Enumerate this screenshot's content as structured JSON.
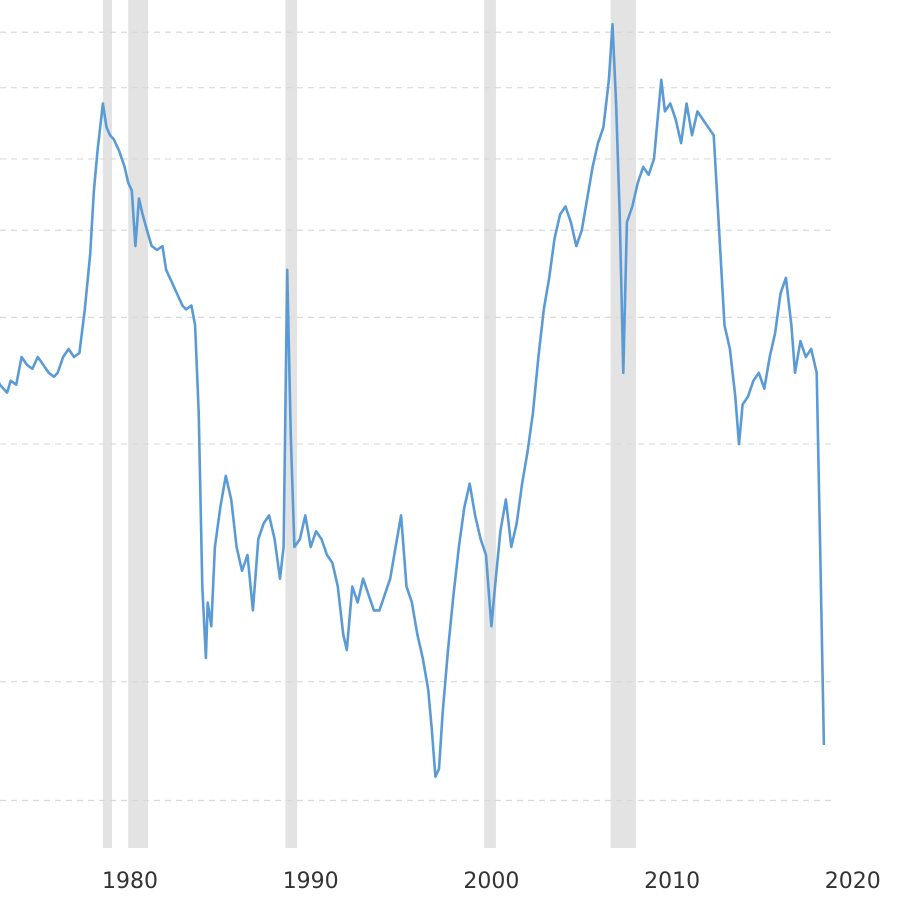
{
  "chart_data": {
    "type": "line",
    "title": "",
    "xlabel": "",
    "ylabel": "",
    "xlim": [
      1972.5,
      2021.0
    ],
    "ylim": [
      0,
      100
    ],
    "x_ticks": [
      1980,
      1990,
      2000,
      2010,
      2020
    ],
    "x_tick_labels": [
      "1980",
      "1990",
      "2000",
      "2010",
      "2020"
    ],
    "y_gridlines": [
      6.0,
      21.0,
      51.0,
      67.0,
      78.0,
      87.0,
      96.0,
      103.0,
      109.0
    ],
    "grid": "horizontal dashed",
    "legend": "none",
    "colors": {
      "line": "#5b9bd5",
      "recession_band": "#e3e3e3",
      "grid": "#d9d9d9",
      "tick_label": "#333333"
    },
    "recession_bands": [
      [
        1978.5,
        1979.0
      ],
      [
        1979.9,
        1981.0
      ],
      [
        1988.6,
        1989.25
      ],
      [
        1999.6,
        2000.25
      ],
      [
        2006.6,
        2008.0
      ]
    ],
    "series": [
      {
        "values": [
          [
            1972.5,
            60.0
          ],
          [
            1972.8,
            58.5
          ],
          [
            1973.2,
            57.5
          ],
          [
            1973.4,
            59.0
          ],
          [
            1973.7,
            58.5
          ],
          [
            1974.0,
            62.0
          ],
          [
            1974.3,
            61.0
          ],
          [
            1974.6,
            60.5
          ],
          [
            1974.9,
            62.0
          ],
          [
            1975.2,
            61.0
          ],
          [
            1975.5,
            60.0
          ],
          [
            1975.8,
            59.5
          ],
          [
            1976.0,
            60.0
          ],
          [
            1976.3,
            62.0
          ],
          [
            1976.6,
            63.0
          ],
          [
            1976.9,
            62.0
          ],
          [
            1977.2,
            62.5
          ],
          [
            1977.5,
            68.0
          ],
          [
            1977.8,
            75.0
          ],
          [
            1978.0,
            83.0
          ],
          [
            1978.2,
            88.0
          ],
          [
            1978.5,
            94.0
          ],
          [
            1978.7,
            91.0
          ],
          [
            1978.9,
            90.0
          ],
          [
            1979.1,
            89.5
          ],
          [
            1979.4,
            88.0
          ],
          [
            1979.7,
            86.0
          ],
          [
            1979.9,
            84.0
          ],
          [
            1980.1,
            83.0
          ],
          [
            1980.3,
            76.0
          ],
          [
            1980.5,
            82.0
          ],
          [
            1980.7,
            80.0
          ],
          [
            1981.0,
            77.5
          ],
          [
            1981.2,
            76.0
          ],
          [
            1981.5,
            75.5
          ],
          [
            1981.8,
            76.0
          ],
          [
            1982.0,
            73.0
          ],
          [
            1982.3,
            71.5
          ],
          [
            1982.6,
            70.0
          ],
          [
            1982.9,
            68.5
          ],
          [
            1983.1,
            68.0
          ],
          [
            1983.4,
            68.5
          ],
          [
            1983.6,
            66.0
          ],
          [
            1983.8,
            55.0
          ],
          [
            1984.0,
            33.0
          ],
          [
            1984.2,
            24.0
          ],
          [
            1984.3,
            31.0
          ],
          [
            1984.5,
            28.0
          ],
          [
            1984.7,
            38.0
          ],
          [
            1985.0,
            43.0
          ],
          [
            1985.3,
            47.0
          ],
          [
            1985.6,
            44.0
          ],
          [
            1985.9,
            38.0
          ],
          [
            1986.2,
            35.0
          ],
          [
            1986.5,
            37.0
          ],
          [
            1986.8,
            30.0
          ],
          [
            1987.1,
            39.0
          ],
          [
            1987.4,
            41.0
          ],
          [
            1987.7,
            42.0
          ],
          [
            1988.0,
            39.0
          ],
          [
            1988.3,
            34.0
          ],
          [
            1988.5,
            38.0
          ],
          [
            1988.7,
            73.0
          ],
          [
            1988.9,
            52.0
          ],
          [
            1989.1,
            38.0
          ],
          [
            1989.4,
            39.0
          ],
          [
            1989.7,
            42.0
          ],
          [
            1990.0,
            38.0
          ],
          [
            1990.3,
            40.0
          ],
          [
            1990.6,
            39.0
          ],
          [
            1990.9,
            37.0
          ],
          [
            1991.2,
            36.0
          ],
          [
            1991.5,
            33.0
          ],
          [
            1991.8,
            27.0
          ],
          [
            1992.0,
            25.0
          ],
          [
            1992.3,
            33.0
          ],
          [
            1992.6,
            31.0
          ],
          [
            1992.9,
            34.0
          ],
          [
            1993.2,
            32.0
          ],
          [
            1993.5,
            30.0
          ],
          [
            1993.8,
            30.0
          ],
          [
            1994.1,
            32.0
          ],
          [
            1994.4,
            34.0
          ],
          [
            1994.7,
            38.0
          ],
          [
            1995.0,
            42.0
          ],
          [
            1995.3,
            33.0
          ],
          [
            1995.6,
            31.0
          ],
          [
            1995.9,
            27.0
          ],
          [
            1996.2,
            24.0
          ],
          [
            1996.5,
            20.0
          ],
          [
            1996.7,
            15.0
          ],
          [
            1996.9,
            9.0
          ],
          [
            1997.1,
            10.0
          ],
          [
            1997.3,
            17.0
          ],
          [
            1997.6,
            25.0
          ],
          [
            1997.9,
            32.0
          ],
          [
            1998.2,
            38.0
          ],
          [
            1998.5,
            43.0
          ],
          [
            1998.8,
            46.0
          ],
          [
            1999.1,
            42.0
          ],
          [
            1999.4,
            39.0
          ],
          [
            1999.7,
            37.0
          ],
          [
            2000.0,
            28.0
          ],
          [
            2000.2,
            33.0
          ],
          [
            2000.5,
            40.0
          ],
          [
            2000.8,
            44.0
          ],
          [
            2001.1,
            38.0
          ],
          [
            2001.4,
            41.0
          ],
          [
            2001.7,
            46.0
          ],
          [
            2002.0,
            50.0
          ],
          [
            2002.3,
            55.0
          ],
          [
            2002.6,
            62.0
          ],
          [
            2002.9,
            68.0
          ],
          [
            2003.2,
            72.0
          ],
          [
            2003.5,
            77.0
          ],
          [
            2003.8,
            80.0
          ],
          [
            2004.1,
            81.0
          ],
          [
            2004.4,
            79.0
          ],
          [
            2004.7,
            76.0
          ],
          [
            2005.0,
            78.0
          ],
          [
            2005.3,
            82.0
          ],
          [
            2005.6,
            86.0
          ],
          [
            2005.9,
            89.0
          ],
          [
            2006.2,
            91.0
          ],
          [
            2006.5,
            97.0
          ],
          [
            2006.7,
            104.0
          ],
          [
            2006.9,
            94.0
          ],
          [
            2007.1,
            80.0
          ],
          [
            2007.3,
            60.0
          ],
          [
            2007.5,
            79.0
          ],
          [
            2007.8,
            81.0
          ],
          [
            2008.1,
            84.0
          ],
          [
            2008.4,
            86.0
          ],
          [
            2008.7,
            85.0
          ],
          [
            2009.0,
            87.0
          ],
          [
            2009.2,
            92.0
          ],
          [
            2009.4,
            97.0
          ],
          [
            2009.6,
            93.0
          ],
          [
            2009.9,
            94.0
          ],
          [
            2010.2,
            92.0
          ],
          [
            2010.5,
            89.0
          ],
          [
            2010.8,
            94.0
          ],
          [
            2011.1,
            90.0
          ],
          [
            2011.4,
            93.0
          ],
          [
            2011.7,
            92.0
          ],
          [
            2012.0,
            91.0
          ],
          [
            2012.3,
            90.0
          ],
          [
            2012.6,
            78.0
          ],
          [
            2012.9,
            66.0
          ],
          [
            2013.2,
            63.0
          ],
          [
            2013.5,
            57.0
          ],
          [
            2013.7,
            51.0
          ],
          [
            2013.9,
            56.0
          ],
          [
            2014.2,
            57.0
          ],
          [
            2014.5,
            59.0
          ],
          [
            2014.8,
            60.0
          ],
          [
            2015.1,
            58.0
          ],
          [
            2015.4,
            62.0
          ],
          [
            2015.7,
            65.0
          ],
          [
            2016.0,
            70.0
          ],
          [
            2016.3,
            72.0
          ],
          [
            2016.6,
            66.0
          ],
          [
            2016.8,
            60.0
          ],
          [
            2017.1,
            64.0
          ],
          [
            2017.4,
            62.0
          ],
          [
            2017.7,
            63.0
          ],
          [
            2018.0,
            60.0
          ],
          [
            2018.2,
            37.0
          ],
          [
            2018.4,
            13.0
          ]
        ]
      }
    ]
  }
}
